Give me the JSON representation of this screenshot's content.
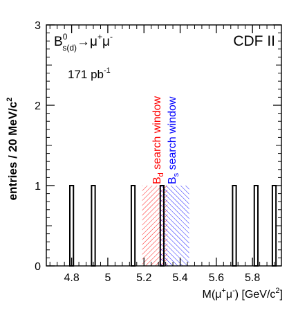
{
  "chart_data": {
    "type": "bar",
    "ylabel_text": "entries / 20 MeV/c",
    "ylabel_sup": "2",
    "xlabel_parts": [
      "M(",
      "μ",
      "+",
      "μ",
      "-",
      ")  [GeV/c",
      "2",
      "]"
    ],
    "experiment_label": "CDF II",
    "lumi_label": "171 pb",
    "lumi_sup": "-1",
    "decay_label": {
      "B": "B",
      "sup": "0",
      "sub": "s(d)",
      "arrow": "→",
      "mu1": "μ",
      "mu1_sup": "+",
      "mu2": "μ",
      "mu2_sup": "-"
    },
    "xlim": [
      4.66,
      5.96
    ],
    "ylim": [
      0,
      3
    ],
    "xticks": [
      4.8,
      5.0,
      5.2,
      5.4,
      5.6,
      5.8
    ],
    "xtick_labels": [
      "4.8",
      "5",
      "5.2",
      "5.4",
      "5.6",
      "5.8"
    ],
    "yticks": [
      0,
      1,
      2,
      3
    ],
    "ytick_labels": [
      "0",
      "1",
      "2",
      "3"
    ],
    "bin_width": 0.02,
    "bins": [
      {
        "x_low": 4.79,
        "count": 1
      },
      {
        "x_low": 4.91,
        "count": 1
      },
      {
        "x_low": 5.13,
        "count": 1
      },
      {
        "x_low": 5.29,
        "count": 1
      },
      {
        "x_low": 5.69,
        "count": 1
      },
      {
        "x_low": 5.81,
        "count": 1
      },
      {
        "x_low": 5.91,
        "count": 1
      }
    ],
    "windows": [
      {
        "name": "Bd search window",
        "label_main": "B",
        "label_sub": "d",
        "label_rest": " search window",
        "x_low": 5.19,
        "x_high": 5.33,
        "color": "#ff0000"
      },
      {
        "name": "Bs search window",
        "label_main": "B",
        "label_sub": "s",
        "label_rest": " search window",
        "x_low": 5.29,
        "x_high": 5.45,
        "color": "#0000ff"
      }
    ],
    "grid": false,
    "legend": "none"
  }
}
